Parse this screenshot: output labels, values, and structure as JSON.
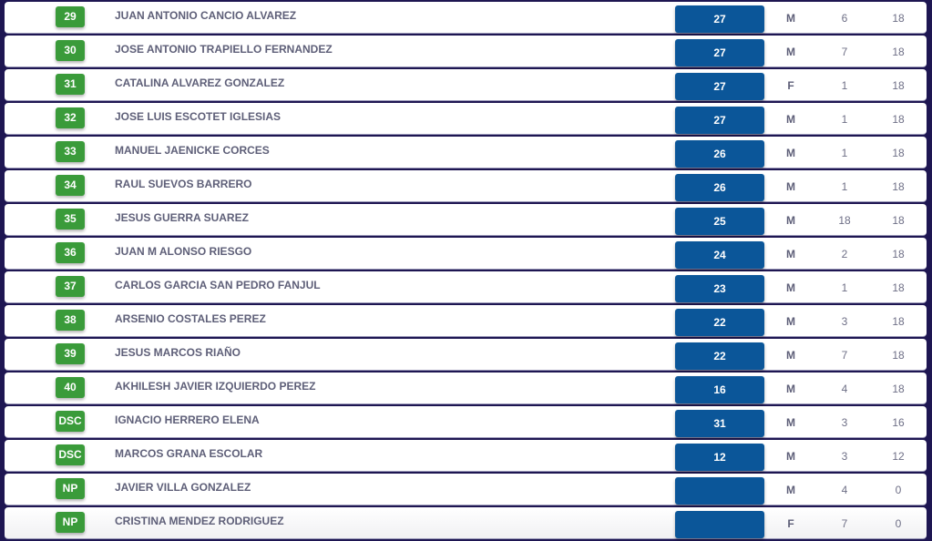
{
  "rows": [
    {
      "pos": "29",
      "name": "JUAN ANTONIO CANCIO ALVAREZ",
      "score": "27",
      "sex": "M",
      "c4": "6",
      "c5": "18"
    },
    {
      "pos": "30",
      "name": "JOSE ANTONIO TRAPIELLO FERNANDEZ",
      "score": "27",
      "sex": "M",
      "c4": "7",
      "c5": "18"
    },
    {
      "pos": "31",
      "name": "CATALINA ALVAREZ GONZALEZ",
      "score": "27",
      "sex": "F",
      "c4": "1",
      "c5": "18"
    },
    {
      "pos": "32",
      "name": "JOSE LUIS ESCOTET IGLESIAS",
      "score": "27",
      "sex": "M",
      "c4": "1",
      "c5": "18"
    },
    {
      "pos": "33",
      "name": "MANUEL JAENICKE CORCES",
      "score": "26",
      "sex": "M",
      "c4": "1",
      "c5": "18"
    },
    {
      "pos": "34",
      "name": "RAUL SUEVOS BARRERO",
      "score": "26",
      "sex": "M",
      "c4": "1",
      "c5": "18"
    },
    {
      "pos": "35",
      "name": "JESUS GUERRA SUAREZ",
      "score": "25",
      "sex": "M",
      "c4": "18",
      "c5": "18"
    },
    {
      "pos": "36",
      "name": "JUAN M ALONSO RIESGO",
      "score": "24",
      "sex": "M",
      "c4": "2",
      "c5": "18"
    },
    {
      "pos": "37",
      "name": "CARLOS GARCIA SAN PEDRO FANJUL",
      "score": "23",
      "sex": "M",
      "c4": "1",
      "c5": "18"
    },
    {
      "pos": "38",
      "name": "ARSENIO COSTALES PEREZ",
      "score": "22",
      "sex": "M",
      "c4": "3",
      "c5": "18"
    },
    {
      "pos": "39",
      "name": "JESUS MARCOS RIAÑO",
      "score": "22",
      "sex": "M",
      "c4": "7",
      "c5": "18"
    },
    {
      "pos": "40",
      "name": "AKHILESH JAVIER IZQUIERDO PEREZ",
      "score": "16",
      "sex": "M",
      "c4": "4",
      "c5": "18"
    },
    {
      "pos": "DSC",
      "name": "IGNACIO HERRERO ELENA",
      "score": "31",
      "sex": "M",
      "c4": "3",
      "c5": "16"
    },
    {
      "pos": "DSC",
      "name": "MARCOS GRANA ESCOLAR",
      "score": "12",
      "sex": "M",
      "c4": "3",
      "c5": "12"
    },
    {
      "pos": "NP",
      "name": "JAVIER VILLA GONZALEZ",
      "score": "",
      "sex": "M",
      "c4": "4",
      "c5": "0"
    },
    {
      "pos": "NP",
      "name": "CRISTINA MENDEZ RODRIGUEZ",
      "score": "",
      "sex": "F",
      "c4": "7",
      "c5": "0"
    }
  ],
  "colors": {
    "position_badge": "#3a9b3a",
    "score_badge": "#0b5699",
    "background": "#1e1652"
  }
}
